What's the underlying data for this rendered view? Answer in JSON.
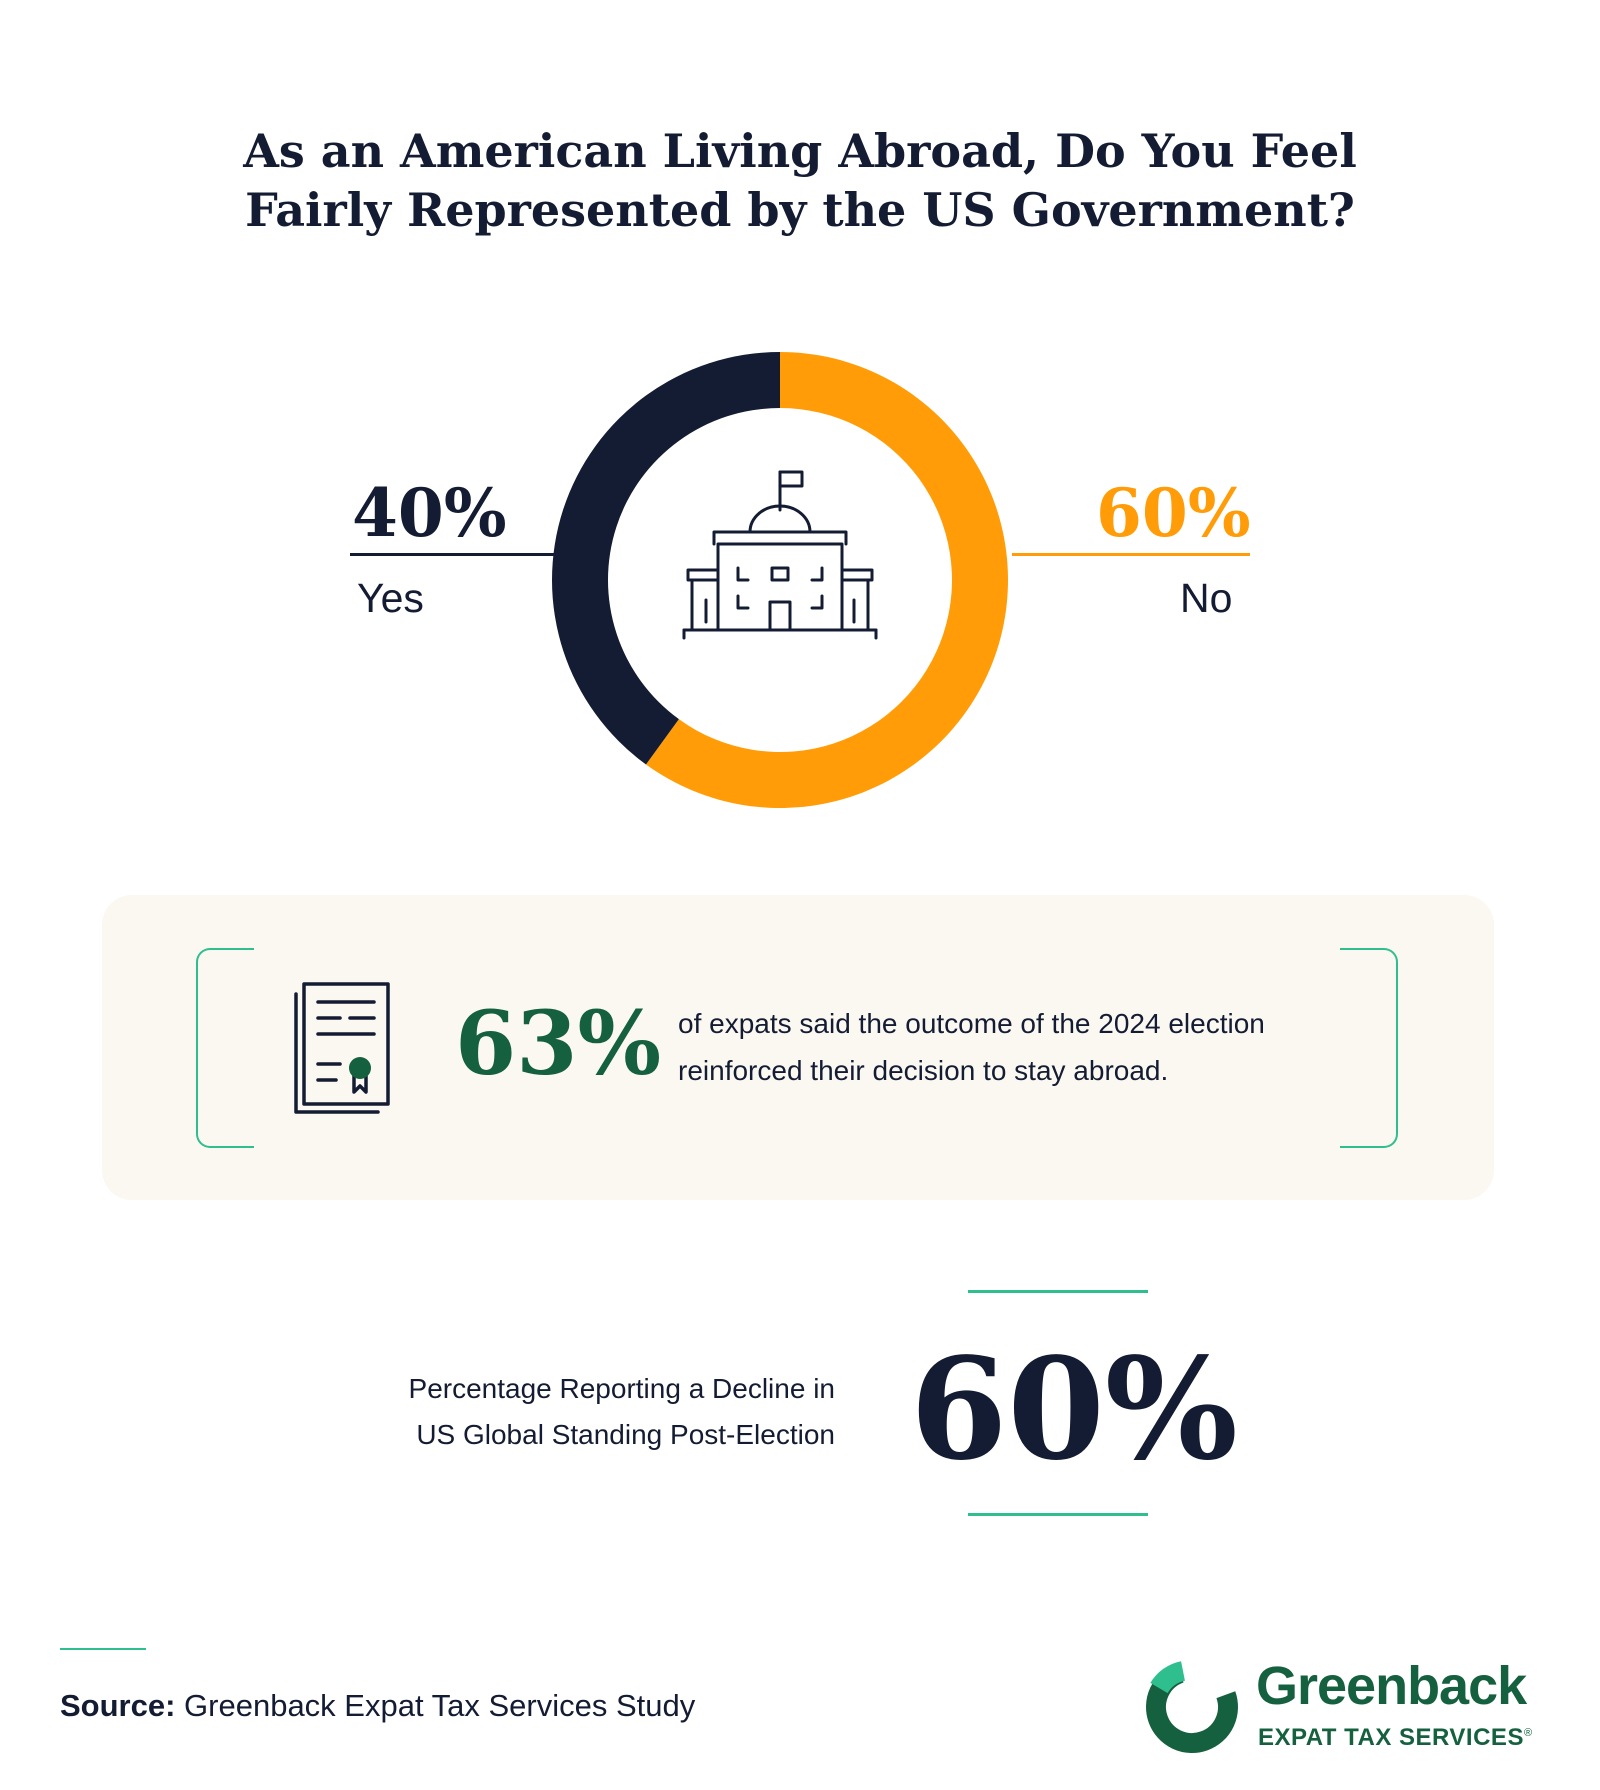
{
  "chart_data": {
    "type": "pie",
    "donut": true,
    "title_lines": [
      "As an American Living Abroad, Do You Feel",
      "Fairly Represented by the US Government?"
    ],
    "categories": [
      "Yes",
      "No"
    ],
    "values": [
      40,
      60
    ],
    "value_labels": [
      "40%",
      "60%"
    ],
    "colors": [
      "#141c33",
      "#ff9c08"
    ],
    "center_icon": "capitol-building-icon"
  },
  "callout": {
    "icon": "certificate-document-icon",
    "stat": "63%",
    "text_lines": [
      "of expats said the outcome of  the 2024 election",
      "reinforced their decision to stay abroad."
    ]
  },
  "decline": {
    "label_lines": [
      "Percentage Reporting a Decline in",
      "US Global Standing Post-Election"
    ],
    "stat": "60%"
  },
  "source": {
    "label": "Source:",
    "text": "Greenback Expat Tax Services Study"
  },
  "brand": {
    "name": "Greenback",
    "tagline": "EXPAT TAX SERVICES",
    "mark": "®",
    "colors": {
      "primary": "#15603f",
      "accent": "#2fbf8f"
    }
  }
}
